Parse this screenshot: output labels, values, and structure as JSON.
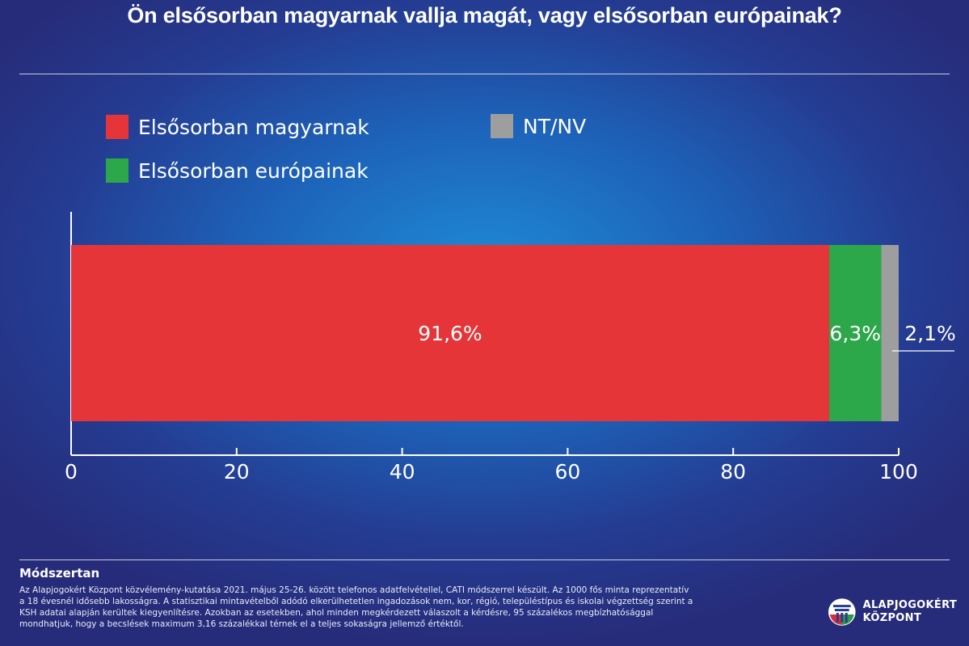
{
  "title": "Ön elsősorban magyarnak vallja magát, vagy elsősorban európainak?",
  "legend": [
    {
      "label": "Elsősorban magyarnak",
      "color": "#e63538"
    },
    {
      "label": "NT/NV",
      "color": "#9e9e9e"
    },
    {
      "label": "Elsősorban európainak",
      "color": "#2ca84a"
    }
  ],
  "chart_data": {
    "type": "bar",
    "orientation": "horizontal",
    "stacked": true,
    "series": [
      {
        "name": "Elsősorban magyarnak",
        "values": [
          91.6
        ],
        "label": "91,6%",
        "color": "#e63538"
      },
      {
        "name": "Elsősorban európainak",
        "values": [
          6.3
        ],
        "label": "6,3%",
        "color": "#2ca84a"
      },
      {
        "name": "NT/NV",
        "values": [
          2.1
        ],
        "label": "2,1%",
        "color": "#9e9e9e"
      }
    ],
    "xticks": [
      "0",
      "20",
      "40",
      "60",
      "80",
      "100"
    ],
    "xlim": [
      0,
      100
    ],
    "grid": false,
    "legend_position": "top"
  },
  "methodology": {
    "heading": "Módszertan",
    "lines": [
      "Az Alapjogokért Központ közvélemény-kutatása 2021. május 25-26. között telefonos adatfelvétellel, CATI módszerrel készült. Az 1000 fős minta reprezentatív",
      "a 18 évesnél idősebb lakosságra. A statisztikai mintavételből adódó elkerülhetetlen ingadozások nem, kor, régió, településtípus és iskolai végzettség szerint a",
      "KSH adatai alapján kerültek kiegyenlítésre. Azokban az esetekben, ahol minden megkérdezett válaszolt a kérdésre, 95 százalékos megbízhatósággal",
      "mondhatjuk, hogy a becslések maximum 3,16 százalékkal térnek el a teljes sokaságra jellemző értéktől."
    ]
  },
  "logo": {
    "line1": "ALAPJOGOKÉRT",
    "line2": "KÖZPONT"
  }
}
